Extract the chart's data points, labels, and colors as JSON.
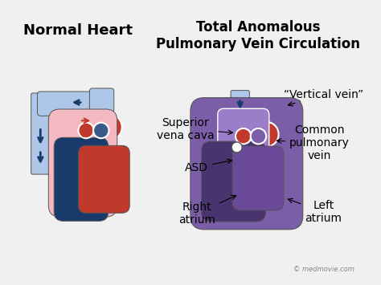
{
  "bg_color": "#f5f5f5",
  "title_left": "Normal Heart",
  "title_right": "Total Anomalous\nPulmonary Vein Circulation",
  "title_fontsize": 13,
  "label_fontsize": 10,
  "watermark": "© medmovie.com",
  "labels": {
    "superior_vena_cava": "Superior\nvena cava",
    "vertical_vein": "“Vertical vein”",
    "asd": "ASD",
    "common_pulmonary_vein": "Common\npulmonary\nvein",
    "right_atrium": "Right\natrium",
    "left_atrium": "Left\natrium"
  },
  "colors": {
    "light_blue": "#aec6e8",
    "light_pink": "#f4b8c1",
    "dark_blue": "#1a3a6b",
    "dark_red": "#c0392b",
    "medium_blue": "#4a6fa5",
    "purple": "#7b5ea7",
    "dark_purple": "#4a3470",
    "red_vessel": "#c0392b",
    "white": "#ffffff",
    "outline": "#555555",
    "arrow_blue": "#1a3a6b",
    "arrow_red": "#c0392b",
    "pink_heart": "#e8909a",
    "bg": "#f0f0f0"
  }
}
